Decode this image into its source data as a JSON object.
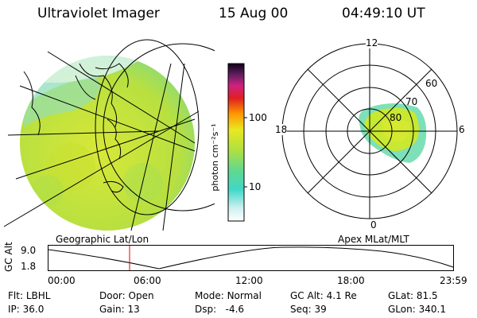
{
  "header": {
    "instrument": "Ultraviolet Imager",
    "date": "15 Aug 00",
    "time": "04:49:10 UT"
  },
  "colorbar": {
    "unit_label": "photon cm⁻²s⁻¹",
    "ticks": [
      "100",
      "10"
    ],
    "scale": "log"
  },
  "polar_plot": {
    "mlt_labels": {
      "top": "12",
      "left": "18",
      "right": "6",
      "bottom": "0"
    },
    "lat_labels": [
      "60",
      "70",
      "80"
    ]
  },
  "panel_labels": {
    "left": "Geographic Lat/Lon",
    "right": "Apex MLat/MLT"
  },
  "altitude_plot": {
    "axis_label": "GC Alt",
    "y_ticks": [
      "9.0",
      "1.8"
    ],
    "x_ticks": [
      "00:00",
      "06:00",
      "12:00",
      "18:00",
      "23:59"
    ],
    "current_time_marker": "04:49"
  },
  "info_rows": [
    [
      {
        "label": "Flt:",
        "value": "LBHL"
      },
      {
        "label": "Door:",
        "value": "Open"
      },
      {
        "label": "Mode:",
        "value": "Normal"
      },
      {
        "label": "GC Alt:",
        "value": "4.1 Re"
      },
      {
        "label": "GLat:",
        "value": "81.5"
      }
    ],
    [
      {
        "label": "IP:",
        "value": "36.0"
      },
      {
        "label": "Gain:",
        "value": "13"
      },
      {
        "label": "Dsp:",
        "value": "-4.6"
      },
      {
        "label": "Seq:",
        "value": "39"
      },
      {
        "label": "GLon:",
        "value": "340.1"
      }
    ]
  ],
  "colors": {
    "aurora_main": "#c8e832",
    "aurora_edge": "#7ee0b8",
    "marker": "#e00000"
  }
}
